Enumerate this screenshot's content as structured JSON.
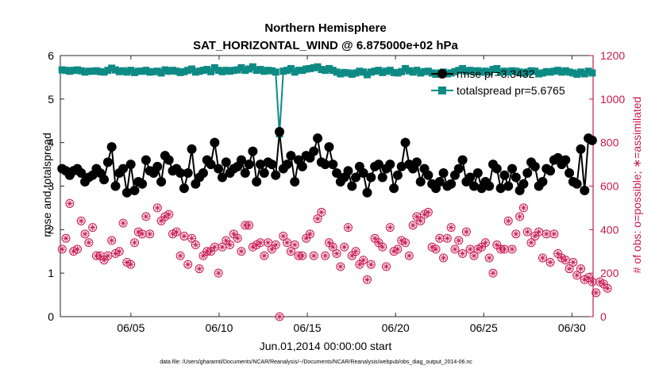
{
  "chart_data": {
    "type": "line",
    "title": "Northern Hemisphere",
    "subtitle": "SAT_HORIZONTAL_WIND @ 6.875000e+02 hPa",
    "xlabel": "Jun.01,2014 00:00:00 start",
    "ylabel": "rmse and totalspread",
    "ylabel_right": "# of obs: o=possible; ∗=assimilated",
    "xlim": [
      1,
      31.2
    ],
    "ylim": [
      0,
      6
    ],
    "ylim_right": [
      0,
      1200
    ],
    "x_ticks": [
      5,
      10,
      15,
      20,
      25,
      30
    ],
    "x_tick_labels": [
      "06/05",
      "06/10",
      "06/15",
      "06/20",
      "06/25",
      "06/30"
    ],
    "y_ticks": [
      0,
      1,
      2,
      3,
      4,
      5,
      6
    ],
    "y_ticks_right": [
      0,
      200,
      400,
      600,
      800,
      1000,
      1200
    ],
    "grid": false,
    "legend_position": "top-right",
    "series": [
      {
        "name": "rmse pr=3.3432",
        "axis": "left",
        "color": "#000000",
        "marker": "filled-circle",
        "values": [
          3.4,
          3.35,
          3.25,
          3.35,
          3.4,
          3.3,
          3.1,
          3.2,
          3.25,
          3.4,
          3.3,
          3.15,
          3.55,
          3.9,
          3.0,
          3.3,
          3.4,
          2.85,
          3.5,
          2.9,
          3.1,
          3.05,
          3.6,
          3.35,
          3.3,
          3.45,
          3.1,
          3.7,
          3.6,
          3.35,
          3.4,
          3.3,
          2.95,
          3.3,
          3.85,
          3.05,
          3.2,
          3.3,
          3.6,
          3.5,
          4.0,
          3.4,
          3.2,
          3.55,
          3.3,
          3.4,
          3.45,
          3.6,
          3.3,
          3.5,
          3.8,
          3.1,
          3.5,
          3.3,
          3.55,
          3.5,
          3.25,
          4.25,
          3.4,
          3.5,
          3.7,
          3.1,
          3.6,
          3.45,
          3.7,
          3.65,
          3.8,
          4.1,
          3.55,
          3.5,
          3.9,
          3.5,
          3.3,
          3.1,
          3.2,
          3.35,
          3.0,
          3.2,
          3.45,
          3.3,
          2.85,
          3.2,
          3.45,
          3.5,
          3.2,
          3.4,
          3.5,
          2.95,
          3.25,
          3.45,
          4.0,
          3.5,
          3.4,
          3.55,
          3.1,
          3.4,
          3.25,
          3.05,
          2.95,
          3.1,
          3.3,
          3.0,
          3.05,
          3.25,
          3.4,
          3.6,
          3.1,
          3.2,
          3.0,
          3.3,
          2.95,
          3.1,
          3.0,
          3.5,
          3.4,
          2.95,
          3.25,
          3.0,
          3.4,
          3.2,
          2.9,
          3.05,
          3.3,
          3.55,
          3.45,
          3.0,
          3.1,
          3.4,
          3.35,
          3.6,
          3.65,
          3.5,
          3.6,
          3.3,
          3.1,
          3.05,
          3.85,
          2.9,
          4.1,
          4.05
        ]
      },
      {
        "name": "totalspread pr=5.6765",
        "axis": "left",
        "color": "#0e8a84",
        "marker": "filled-square",
        "values": [
          5.67,
          5.66,
          5.64,
          5.66,
          5.67,
          5.65,
          5.62,
          5.64,
          5.64,
          5.65,
          5.63,
          5.62,
          5.66,
          5.71,
          5.67,
          5.63,
          5.65,
          5.62,
          5.66,
          5.61,
          5.64,
          5.64,
          5.66,
          5.62,
          5.63,
          5.64,
          5.6,
          5.67,
          5.64,
          5.66,
          5.64,
          5.61,
          5.63,
          5.66,
          5.69,
          5.62,
          5.64,
          5.66,
          5.68,
          5.63,
          5.72,
          5.66,
          5.63,
          5.66,
          5.64,
          5.66,
          5.67,
          5.72,
          5.66,
          5.69,
          5.74,
          5.66,
          5.68,
          5.64,
          5.66,
          5.65,
          5.62,
          4.2,
          5.64,
          5.66,
          5.7,
          5.62,
          5.66,
          5.66,
          5.69,
          5.7,
          5.72,
          5.74,
          5.68,
          5.66,
          5.7,
          5.66,
          5.62,
          5.58,
          5.61,
          5.6,
          5.57,
          5.6,
          5.64,
          5.62,
          5.56,
          5.62,
          5.64,
          5.66,
          5.61,
          5.64,
          5.66,
          5.61,
          5.6,
          5.63,
          5.7,
          5.65,
          5.62,
          5.66,
          5.6,
          5.63,
          5.64,
          5.6,
          5.57,
          5.6,
          5.62,
          5.58,
          5.6,
          5.63,
          5.66,
          5.7,
          5.64,
          5.66,
          5.63,
          5.65,
          5.62,
          5.64,
          5.62,
          5.68,
          5.7,
          5.62,
          5.64,
          5.62,
          5.65,
          5.64,
          5.62,
          5.6,
          5.62,
          5.65,
          5.64,
          5.58,
          5.6,
          5.63,
          5.62,
          5.64,
          5.66,
          5.62,
          5.65,
          5.62,
          5.6,
          5.57,
          5.62,
          5.58,
          5.64,
          5.6
        ]
      },
      {
        "name": "possible",
        "axis": "right",
        "color": "#c8194f",
        "marker": "open-circle",
        "values": [
          310,
          360,
          520,
          300,
          310,
          440,
          380,
          340,
          410,
          280,
          280,
          260,
          280,
          350,
          290,
          300,
          430,
          250,
          240,
          340,
          390,
          380,
          460,
          380,
          660,
          500,
          440,
          460,
          470,
          380,
          390,
          280,
          370,
          240,
          360,
          330,
          220,
          280,
          300,
          300,
          320,
          200,
          320,
          350,
          330,
          380,
          360,
          300,
          420,
          420,
          320,
          330,
          340,
          280,
          340,
          310,
          330,
          0,
          370,
          340,
          300,
          330,
          280,
          280,
          360,
          380,
          280,
          450,
          480,
          280,
          340,
          320,
          290,
          230,
          320,
          410,
          280,
          300,
          240,
          260,
          170,
          240,
          360,
          340,
          320,
          230,
          410,
          300,
          310,
          350,
          340,
          280,
          420,
          460,
          440,
          470,
          480,
          320,
          310,
          360,
          270,
          360,
          410,
          310,
          350,
          290,
          390,
          310,
          280,
          310,
          320,
          340,
          270,
          200,
          330,
          310,
          310,
          440,
          310,
          380,
          460,
          500,
          390,
          340,
          370,
          390,
          270,
          380,
          250,
          380,
          290,
          270,
          260,
          220,
          250,
          190,
          220,
          170,
          180,
          160,
          110,
          160,
          150,
          130
        ]
      },
      {
        "name": "assimilated",
        "axis": "right",
        "color": "#c8194f",
        "marker": "asterisk",
        "values": [
          310,
          360,
          520,
          300,
          310,
          440,
          380,
          340,
          410,
          280,
          280,
          260,
          280,
          350,
          290,
          300,
          430,
          250,
          240,
          340,
          390,
          380,
          460,
          380,
          660,
          500,
          440,
          460,
          470,
          380,
          390,
          280,
          370,
          240,
          360,
          330,
          220,
          280,
          300,
          300,
          320,
          200,
          320,
          350,
          330,
          380,
          360,
          300,
          420,
          420,
          320,
          330,
          340,
          280,
          340,
          310,
          330,
          0,
          370,
          340,
          300,
          330,
          280,
          280,
          360,
          380,
          280,
          450,
          480,
          280,
          340,
          320,
          290,
          230,
          320,
          410,
          280,
          300,
          240,
          260,
          170,
          240,
          360,
          340,
          320,
          230,
          410,
          300,
          310,
          350,
          340,
          280,
          420,
          460,
          440,
          470,
          480,
          320,
          310,
          360,
          270,
          360,
          410,
          310,
          350,
          290,
          390,
          310,
          280,
          310,
          320,
          340,
          270,
          200,
          330,
          310,
          310,
          440,
          310,
          380,
          460,
          500,
          390,
          340,
          370,
          390,
          270,
          380,
          250,
          380,
          290,
          270,
          260,
          220,
          250,
          190,
          220,
          170,
          180,
          160,
          110,
          160,
          150,
          130
        ]
      }
    ],
    "footnote": "data file: /Users/gharamti/Documents/NCAR/Reanalysis/~/Documents/NCAR/Reanalysis/webpub/obs_diag_output_2014-06.nc"
  }
}
